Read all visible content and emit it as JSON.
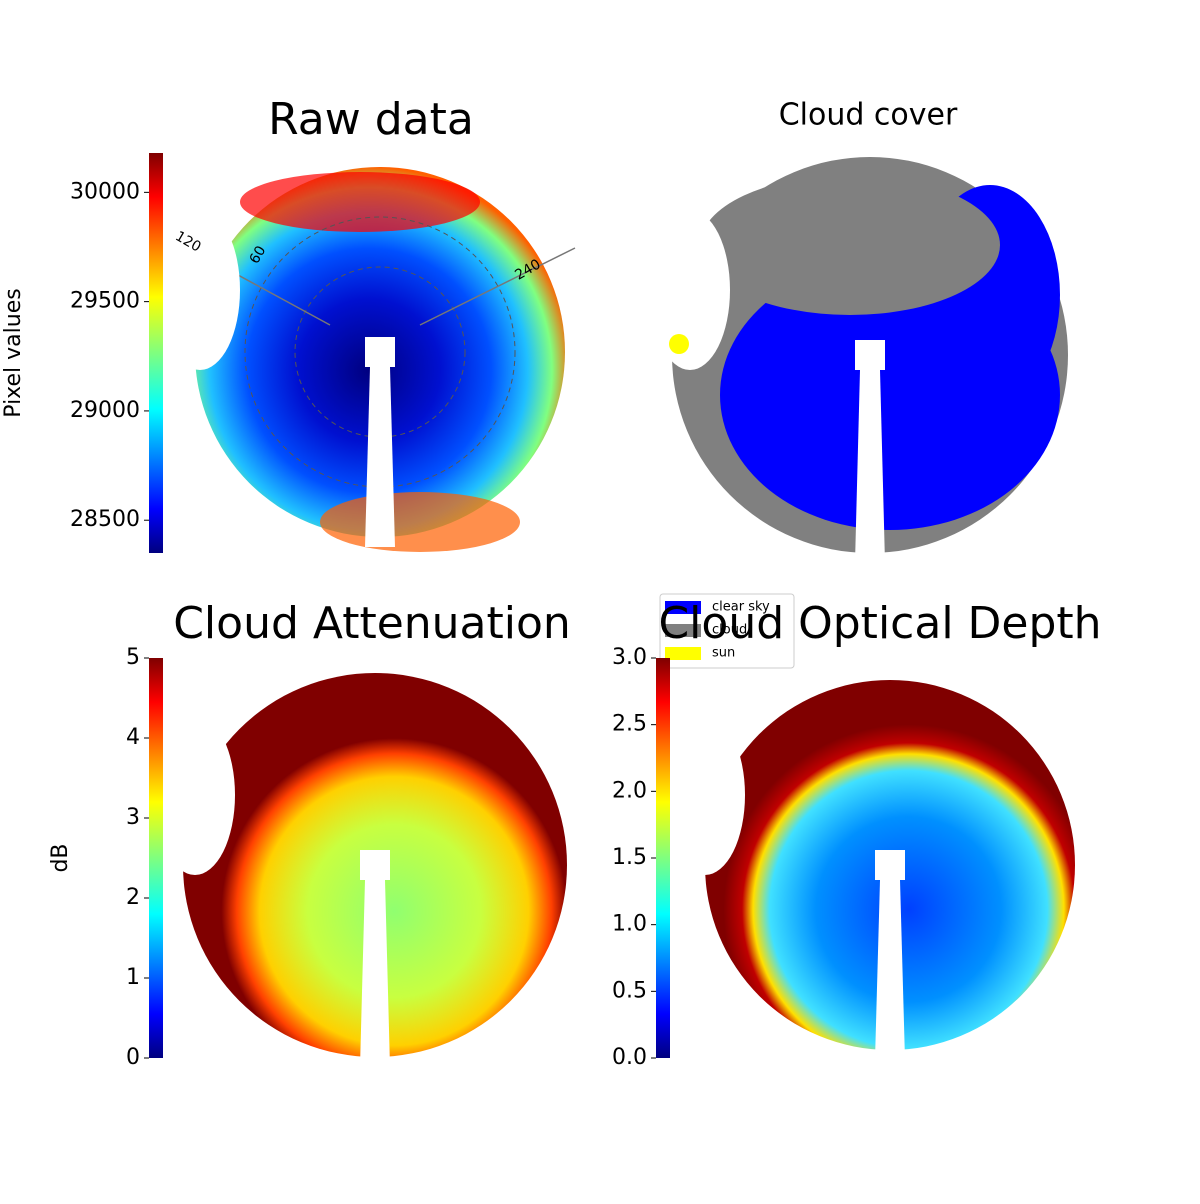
{
  "chart_data": [
    {
      "type": "image",
      "title": "Raw data",
      "colorbar_label": "Pixel values",
      "colormap": "jet",
      "ylim": [
        28350,
        30180
      ],
      "yticks": [
        28500,
        29000,
        29500,
        30000
      ],
      "annotations": [
        "120",
        "60",
        "240"
      ]
    },
    {
      "type": "image",
      "title": "Cloud cover",
      "legend": [
        {
          "name": "clear sky",
          "color": "#0000ff"
        },
        {
          "name": "cloud",
          "color": "#808080"
        },
        {
          "name": "sun",
          "color": "#ffff00"
        }
      ]
    },
    {
      "type": "image",
      "title": "Cloud Attenuation",
      "colorbar_label": "dB",
      "colormap": "jet",
      "ylim": [
        0,
        5
      ],
      "yticks": [
        0,
        1,
        2,
        3,
        4,
        5
      ]
    },
    {
      "type": "image",
      "title": "Cloud Optical Depth",
      "colormap": "jet",
      "ylim": [
        0,
        3
      ],
      "yticks": [
        {
          "value": 0,
          "label": "0.0"
        },
        0.5,
        {
          "value": 1,
          "label": "1.0"
        },
        1.5,
        {
          "value": 2,
          "label": "2.0"
        },
        2.5,
        {
          "value": 3,
          "label": "3.0"
        }
      ]
    }
  ]
}
